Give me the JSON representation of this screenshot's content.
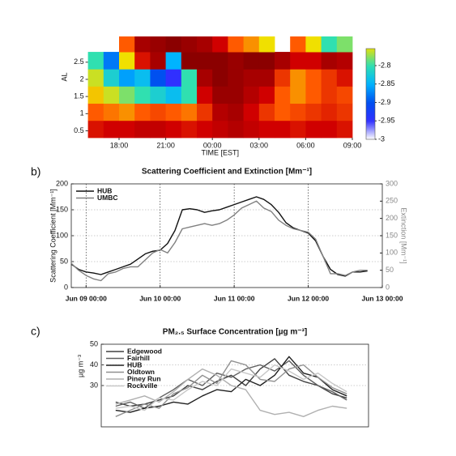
{
  "chart_data": [
    {
      "type": "heatmap",
      "ylabel": "AL",
      "xlabel": "TIME [EST]",
      "xlim": [
        16,
        33
      ],
      "ylim": [
        0.3,
        3.25
      ],
      "xticks": [
        {
          "value": 18,
          "label": "18:00"
        },
        {
          "value": 21,
          "label": "21:00"
        },
        {
          "value": 24,
          "label": "00:00"
        },
        {
          "value": 27,
          "label": "03:00"
        },
        {
          "value": 30,
          "label": "06:00"
        },
        {
          "value": 33,
          "label": "09:00"
        }
      ],
      "yticks": [
        0.5,
        1,
        1.5,
        2,
        2.5
      ],
      "x_bins": [
        16,
        17,
        18,
        19,
        20,
        21,
        22,
        23,
        24,
        25,
        26,
        27,
        28,
        29,
        30,
        31,
        32,
        33
      ],
      "y_bins": [
        0.3,
        0.8,
        1.3,
        1.8,
        2.3,
        2.8,
        3.25
      ],
      "z": [
        [
          -2.66,
          -2.65,
          -2.65,
          -2.64,
          -2.64,
          -2.65,
          -2.66,
          -2.65,
          -2.64,
          -2.63,
          -2.64,
          -2.65,
          -2.65,
          -2.66,
          -2.65,
          -2.65,
          -2.66
        ],
        [
          -2.7,
          -2.71,
          -2.72,
          -2.7,
          -2.69,
          -2.7,
          -2.71,
          -2.68,
          -2.63,
          -2.62,
          -2.65,
          -2.68,
          -2.7,
          -2.69,
          -2.68,
          -2.67,
          -2.68
        ],
        [
          -2.74,
          -2.76,
          -2.78,
          -2.8,
          -2.82,
          -2.84,
          -2.8,
          -2.65,
          -2.61,
          -2.61,
          -2.63,
          -2.65,
          -2.7,
          -2.72,
          -2.7,
          -2.68,
          -2.69
        ],
        [
          -2.76,
          -2.82,
          -2.86,
          -2.84,
          -2.9,
          -2.95,
          -2.8,
          -2.62,
          -2.6,
          -2.61,
          -2.62,
          -2.62,
          -2.68,
          -2.72,
          -2.7,
          -2.68,
          -2.66
        ],
        [
          -2.8,
          -2.88,
          -2.75,
          -2.66,
          -2.62,
          -2.85,
          -2.6,
          -2.6,
          -2.6,
          -2.61,
          -2.6,
          -2.6,
          -2.62,
          -2.65,
          -2.65,
          -2.62,
          -2.63
        ],
        [
          null,
          null,
          -2.7,
          -2.62,
          -2.61,
          -2.6,
          -2.61,
          -2.62,
          -2.65,
          -2.7,
          -2.72,
          -2.75,
          null,
          -2.7,
          -2.75,
          -2.8,
          -2.78
        ]
      ],
      "zlim": [
        -3,
        -2.6
      ],
      "zticks": [
        -2.8,
        -2.85,
        -2.9,
        -2.95,
        -3
      ],
      "colormap": [
        "#ffffff",
        "#3030ff",
        "#0050f0",
        "#00b4ff",
        "#30e0b0",
        "#f0e000",
        "#ff5a00",
        "#d00000",
        "#8b0000"
      ]
    },
    {
      "type": "line",
      "label": "b)",
      "title": "Scattering Coefficient and Extinction [Mm⁻¹]",
      "ylabel": "Scattering Coefficient [Mm⁻¹]",
      "y2label": "Extinction [Mm⁻¹]",
      "xlim": [
        -0.2,
        4
      ],
      "ylim": [
        0,
        200
      ],
      "y2lim": [
        0,
        300
      ],
      "xticks": [
        {
          "value": 0,
          "label": "Jun 09 00:00"
        },
        {
          "value": 1,
          "label": "Jun 10 00:00"
        },
        {
          "value": 2,
          "label": "Jun 11 00:00"
        },
        {
          "value": 3,
          "label": "Jun 12 00:00"
        },
        {
          "value": 4,
          "label": "Jun 13 00:00"
        }
      ],
      "yticks": [
        0,
        50,
        100,
        150,
        200
      ],
      "y2ticks": [
        0,
        50,
        100,
        150,
        200,
        250,
        300
      ],
      "grid": true,
      "legend": "upper left",
      "x": [
        -0.2,
        -0.1,
        0,
        0.1,
        0.2,
        0.3,
        0.4,
        0.5,
        0.6,
        0.7,
        0.8,
        0.9,
        1,
        1.1,
        1.2,
        1.3,
        1.4,
        1.5,
        1.6,
        1.7,
        1.8,
        1.9,
        2,
        2.1,
        2.2,
        2.3,
        2.4,
        2.5,
        2.6,
        2.7,
        2.8,
        2.9,
        3,
        3.1,
        3.2,
        3.3,
        3.4,
        3.5,
        3.6,
        3.7,
        3.8
      ],
      "series": [
        {
          "name": "HUB",
          "color": "#111111",
          "values": [
            45,
            35,
            30,
            28,
            25,
            30,
            35,
            40,
            45,
            55,
            65,
            70,
            72,
            85,
            110,
            150,
            152,
            150,
            145,
            148,
            150,
            155,
            160,
            165,
            170,
            175,
            170,
            160,
            145,
            125,
            115,
            110,
            105,
            90,
            60,
            35,
            25,
            22,
            30,
            30,
            32
          ]
        },
        {
          "name": "UMBC",
          "color": "#808080",
          "axis": "y2",
          "values": [
            70,
            50,
            35,
            25,
            20,
            40,
            45,
            55,
            60,
            60,
            80,
            100,
            110,
            100,
            130,
            170,
            175,
            180,
            185,
            180,
            185,
            195,
            210,
            230,
            240,
            250,
            230,
            220,
            195,
            180,
            170,
            165,
            160,
            140,
            90,
            40,
            40,
            35,
            45,
            50,
            50
          ]
        }
      ]
    },
    {
      "type": "line",
      "label": "c)",
      "title": "PM₂.₅ Surface Concentration [µg m⁻³]",
      "ylabel": "µg m⁻³",
      "xlim": [
        0.1,
        3.8
      ],
      "ylim": [
        10,
        50
      ],
      "yticks": [
        30,
        40,
        50
      ],
      "grid": true,
      "legend": "upper left",
      "x": [
        0.3,
        0.5,
        0.7,
        0.9,
        1.1,
        1.3,
        1.5,
        1.7,
        1.9,
        2.1,
        2.3,
        2.5,
        2.7,
        2.9,
        3.1,
        3.3,
        3.5
      ],
      "series": [
        {
          "name": "Edgewood",
          "color": "#404040",
          "values": [
            22,
            20,
            21,
            23,
            25,
            30,
            28,
            32,
            35,
            30,
            38,
            43,
            35,
            32,
            30,
            26,
            24
          ]
        },
        {
          "name": "Fairhill",
          "color": "#606060",
          "values": [
            20,
            22,
            19,
            24,
            28,
            33,
            30,
            36,
            34,
            38,
            40,
            37,
            42,
            35,
            30,
            27,
            23
          ]
        },
        {
          "name": "HUB",
          "color": "#202020",
          "values": [
            18,
            17,
            19,
            20,
            22,
            21,
            25,
            28,
            27,
            33,
            30,
            35,
            44,
            36,
            34,
            28,
            25
          ]
        },
        {
          "name": "Oldtown",
          "color": "#909090",
          "values": [
            15,
            18,
            21,
            19,
            26,
            29,
            35,
            31,
            42,
            40,
            33,
            32,
            38,
            40,
            34,
            29,
            26
          ]
        },
        {
          "name": "Piney Run",
          "color": "#b0b0b0",
          "values": [
            21,
            23,
            25,
            22,
            27,
            33,
            38,
            35,
            30,
            28,
            18,
            16,
            17,
            15,
            18,
            20,
            19
          ]
        },
        {
          "name": "Rockville",
          "color": "#c8c8c8",
          "values": [
            19,
            20,
            18,
            24,
            23,
            28,
            32,
            30,
            38,
            36,
            34,
            40,
            37,
            33,
            36,
            31,
            27
          ]
        }
      ]
    }
  ]
}
